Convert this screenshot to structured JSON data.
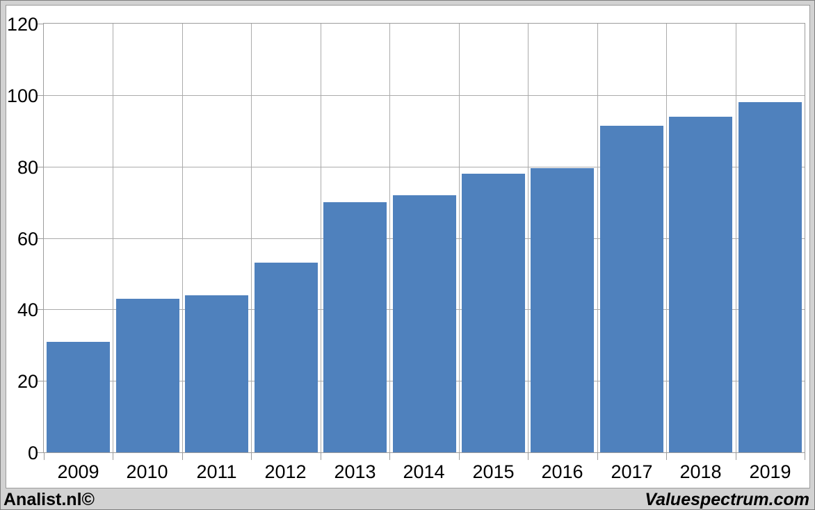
{
  "footer": {
    "left_credit": "Analist.nl©",
    "right_credit": "Valuespectrum.com"
  },
  "chart_data": {
    "type": "bar",
    "title": "",
    "categories": [
      "2009",
      "2010",
      "2011",
      "2012",
      "2013",
      "2014",
      "2015",
      "2016",
      "2017",
      "2018",
      "2019"
    ],
    "values": [
      31,
      43,
      44,
      53,
      70,
      72,
      78,
      79.5,
      91.5,
      94,
      98
    ],
    "xlabel": "",
    "ylabel": "",
    "ylim": [
      0,
      120
    ],
    "yticks": [
      0,
      20,
      40,
      60,
      80,
      100,
      120
    ],
    "grid": {
      "horizontal": true,
      "vertical": true
    },
    "legend": "none",
    "colors": {
      "bar": "#4f81bd",
      "gridline": "#ababab",
      "axis": "#9c9c9c",
      "plot_background": "#ffffff",
      "frame_background": "#d2d2d2",
      "text": "#000000"
    }
  }
}
